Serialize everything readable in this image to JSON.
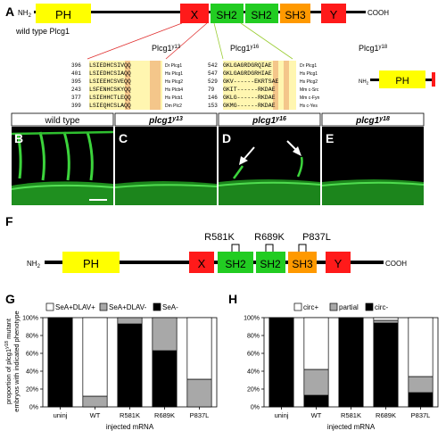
{
  "panels": {
    "A": "A",
    "B": "B",
    "C": "C",
    "D": "D",
    "E": "E",
    "F": "F",
    "G": "G",
    "H": "H"
  },
  "domainA": {
    "nh2": "NH",
    "sub2": "2",
    "cooh": "COOH",
    "domains": [
      "PH",
      "X",
      "SH2",
      "SH2",
      "SH3",
      "Y"
    ],
    "wt_label": "wild type Plcg1",
    "allele_r13": "Plcg1",
    "sup_r13": "y13",
    "allele_r16": "Plcg1",
    "sup_r16": "y16",
    "allele_r18": "Plcg1",
    "sup_r18": "y18",
    "r18_domain": "PH"
  },
  "align_left": {
    "nums": [
      "396",
      "401",
      "395",
      "243",
      "377",
      "399"
    ],
    "seqs": [
      "LSIEDHCSIVQQ",
      "LSIEDHCSIAQQ",
      "LSIEEHCSVEQQ",
      "LSFENHCSKYQQ",
      "LSIEHHCTLEQQ",
      "LSIEQHCSLAQQ"
    ],
    "names": [
      "Dr Plcg1",
      "Hs Plcg1",
      "Hs Plcg2",
      "Hs Plcb4",
      "Hs Plcb1",
      "Dm Plc"
    ]
  },
  "align_left_last_name": "Dm Plc2",
  "align_right": {
    "nums": [
      "542",
      "547",
      "529",
      "79",
      "146",
      "153"
    ],
    "seqs": [
      "GKLGAGRDGRQIAE",
      "GKLGAGRDGRHIAE",
      "GKV------EKRTSAE",
      "GKIT------RKDAE",
      "GKLG------RKDAE",
      "GKMG------RKDAE"
    ],
    "names": [
      "Dr Plcg1",
      "Hs Plcg1",
      "Hs Plcg2",
      "Mm c-Src",
      "Mm c-Fyn",
      "Hs c-Yes"
    ]
  },
  "images": {
    "B": "wild type",
    "C": "plcg1y13",
    "D": "plcg1y16",
    "E": "plcg1y18"
  },
  "image_labels": {
    "wt": "wild type",
    "c": "plcg1",
    "c_sup": "y13",
    "d": "plcg1",
    "d_sup": "y16",
    "e": "plcg1",
    "e_sup": "y18"
  },
  "domainF": {
    "mutations": [
      "R581K",
      "R689K",
      "P837L"
    ],
    "domains": [
      "PH",
      "X",
      "SH2",
      "SH2",
      "SH3",
      "Y"
    ],
    "nh2": "NH",
    "sub2": "2",
    "cooh": "COOH"
  },
  "colors": {
    "PH": "#ffff00",
    "X": "#ff1a1a",
    "SH2": "#22cc22",
    "SH3": "#ff9900",
    "Y": "#ff1a1a",
    "gray": "#a8a8a8"
  },
  "chart_data": [
    {
      "type": "bar",
      "stacked": true,
      "categories": [
        "uninj",
        "WT",
        "R581K",
        "R689K",
        "P837L"
      ],
      "series": [
        {
          "name": "SeA-",
          "values": [
            100,
            0,
            93,
            63,
            0
          ]
        },
        {
          "name": "SeA+DLAV-",
          "values": [
            0,
            12,
            7,
            37,
            31
          ]
        },
        {
          "name": "SeA+DLAV+",
          "values": [
            0,
            88,
            0,
            0,
            69
          ]
        }
      ],
      "ylabel_line1": "proportion of plcg1",
      "ylabel_sup": "y18",
      "ylabel_line1b": " mutant",
      "ylabel_line2": "embryos with indicated phenotype",
      "xlabel": "injected mRNA",
      "ylim": [
        0,
        100
      ],
      "yticks": [
        "0%",
        "20%",
        "40%",
        "60%",
        "80%",
        "100%"
      ],
      "legend": [
        "SeA+DLAV+",
        "SeA+DLAV-",
        "SeA-"
      ],
      "legend_position": "top"
    },
    {
      "type": "bar",
      "stacked": true,
      "categories": [
        "uninj",
        "WT",
        "R581K",
        "R689K",
        "P837L"
      ],
      "series": [
        {
          "name": "circ-",
          "values": [
            100,
            13,
            100,
            94,
            16
          ]
        },
        {
          "name": "partial",
          "values": [
            0,
            29,
            0,
            3,
            18
          ]
        },
        {
          "name": "circ+",
          "values": [
            0,
            58,
            0,
            3,
            66
          ]
        }
      ],
      "xlabel": "injected mRNA",
      "ylim": [
        0,
        100
      ],
      "yticks": [
        "0%",
        "20%",
        "40%",
        "60%",
        "80%",
        "100%"
      ],
      "legend": [
        "circ+",
        "partial",
        "circ-"
      ],
      "legend_position": "top"
    }
  ]
}
